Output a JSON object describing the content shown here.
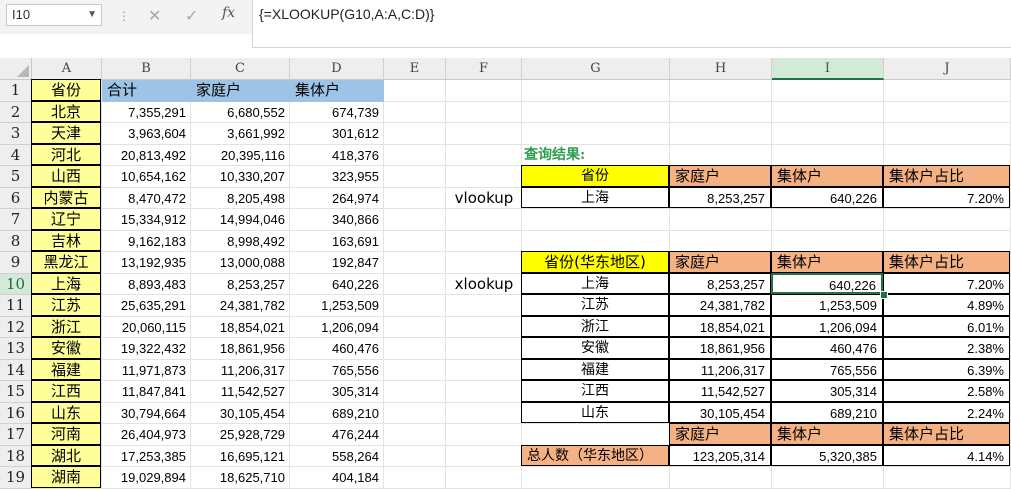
{
  "formula_bar": {
    "name_box": "I10",
    "formula": "{=XLOOKUP(G10,A:A,C:D)}",
    "fx_label": "fx",
    "cancel_icon": "✕",
    "confirm_icon": "✓"
  },
  "columns": [
    "A",
    "B",
    "C",
    "D",
    "E",
    "F",
    "G",
    "H",
    "I",
    "J"
  ],
  "rows": [
    "1",
    "2",
    "3",
    "4",
    "5",
    "6",
    "7",
    "8",
    "9",
    "10",
    "11",
    "12",
    "13",
    "14",
    "15",
    "16",
    "17",
    "18",
    "19"
  ],
  "selection": {
    "active_cell": "I10",
    "column": "I",
    "row": "10"
  },
  "main_table": {
    "headers": [
      "省份",
      "合计",
      "家庭户",
      "集体户"
    ],
    "rows": [
      [
        "北京",
        "7,355,291",
        "6,680,552",
        "674,739"
      ],
      [
        "天津",
        "3,963,604",
        "3,661,992",
        "301,612"
      ],
      [
        "河北",
        "20,813,492",
        "20,395,116",
        "418,376"
      ],
      [
        "山西",
        "10,654,162",
        "10,330,207",
        "323,955"
      ],
      [
        "内蒙古",
        "8,470,472",
        "8,205,498",
        "264,974"
      ],
      [
        "辽宁",
        "15,334,912",
        "14,994,046",
        "340,866"
      ],
      [
        "吉林",
        "9,162,183",
        "8,998,492",
        "163,691"
      ],
      [
        "黑龙江",
        "13,192,935",
        "13,000,088",
        "192,847"
      ],
      [
        "上海",
        "8,893,483",
        "8,253,257",
        "640,226"
      ],
      [
        "江苏",
        "25,635,291",
        "24,381,782",
        "1,253,509"
      ],
      [
        "浙江",
        "20,060,115",
        "18,854,021",
        "1,206,094"
      ],
      [
        "安徽",
        "19,322,432",
        "18,861,956",
        "460,476"
      ],
      [
        "福建",
        "11,971,873",
        "11,206,317",
        "765,556"
      ],
      [
        "江西",
        "11,847,841",
        "11,542,527",
        "305,314"
      ],
      [
        "山东",
        "30,794,664",
        "30,105,454",
        "689,210"
      ],
      [
        "河南",
        "26,404,973",
        "25,928,729",
        "476,244"
      ],
      [
        "湖北",
        "17,253,385",
        "16,695,121",
        "558,264"
      ],
      [
        "湖南",
        "19,029,894",
        "18,625,710",
        "404,184"
      ]
    ]
  },
  "query_result": {
    "title": "查询结果:",
    "label": "vlookup",
    "headers": [
      "省份",
      "家庭户",
      "集体户",
      "集体户占比"
    ],
    "row": [
      "上海",
      "8,253,257",
      "640,226",
      "7.20%"
    ]
  },
  "east_china": {
    "label": "xlookup",
    "headers": [
      "省份(华东地区)",
      "家庭户",
      "集体户",
      "集体户占比"
    ],
    "rows": [
      [
        "上海",
        "8,253,257",
        "640,226",
        "7.20%"
      ],
      [
        "江苏",
        "24,381,782",
        "1,253,509",
        "4.89%"
      ],
      [
        "浙江",
        "18,854,021",
        "1,206,094",
        "6.01%"
      ],
      [
        "安徽",
        "18,861,956",
        "460,476",
        "2.38%"
      ],
      [
        "福建",
        "11,206,317",
        "765,556",
        "6.39%"
      ],
      [
        "江西",
        "11,542,527",
        "305,314",
        "2.58%"
      ],
      [
        "山东",
        "30,105,454",
        "689,210",
        "2.24%"
      ]
    ]
  },
  "totals": {
    "headers": [
      "家庭户",
      "集体户",
      "集体户占比"
    ],
    "label": "总人数（华东地区）",
    "values": [
      "123,205,314",
      "5,320,385",
      "4.14%"
    ]
  }
}
